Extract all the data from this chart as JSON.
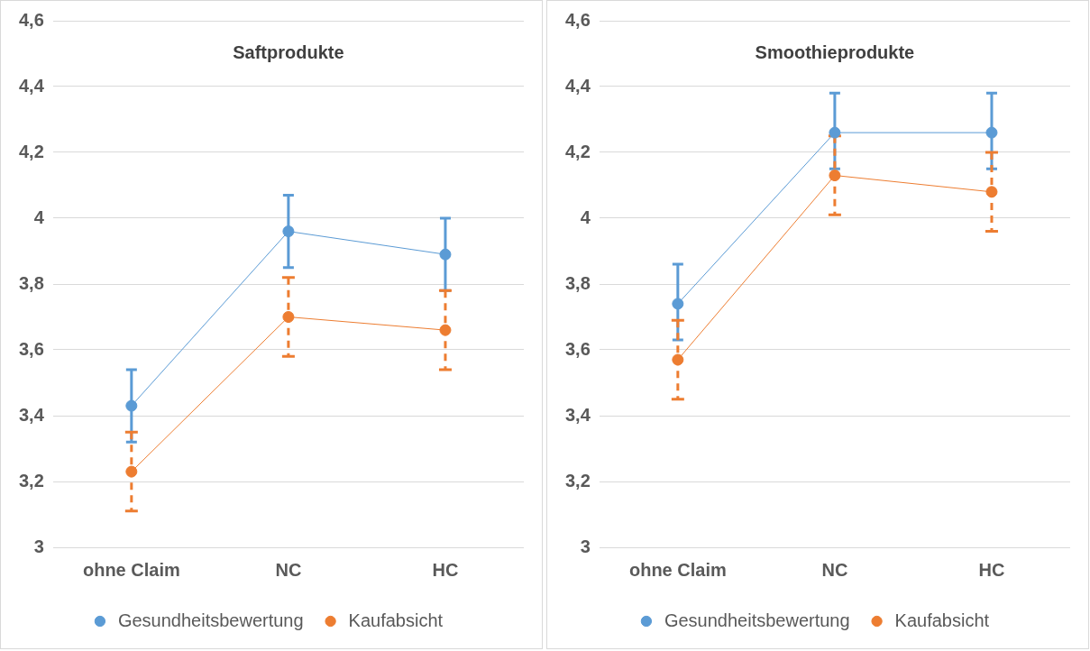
{
  "chart_data": [
    {
      "type": "line",
      "title": "Saftprodukte",
      "categories": [
        "ohne Claim",
        "NC",
        "HC"
      ],
      "ylim": [
        3,
        4.6
      ],
      "yticks": [
        {
          "value": 3,
          "label": "3"
        },
        {
          "value": 3.2,
          "label": "3,2"
        },
        {
          "value": 3.4,
          "label": "3,4"
        },
        {
          "value": 3.6,
          "label": "3,6"
        },
        {
          "value": 3.8,
          "label": "3,8"
        },
        {
          "value": 4,
          "label": "4"
        },
        {
          "value": 4.2,
          "label": "4,2"
        },
        {
          "value": 4.4,
          "label": "4,4"
        },
        {
          "value": 4.6,
          "label": "4,6"
        }
      ],
      "grid": "y",
      "legend": "bottom",
      "marker": "circle",
      "series": [
        {
          "name": "Gesundheitsbewertung",
          "color": "#5b9bd5",
          "values": [
            3.43,
            3.96,
            3.89
          ],
          "errors": [
            0.11,
            0.11,
            0.11
          ]
        },
        {
          "name": "Kaufabsicht",
          "color": "#ed7d31",
          "values": [
            3.23,
            3.7,
            3.66
          ],
          "errors": [
            0.12,
            0.12,
            0.12
          ]
        }
      ]
    },
    {
      "type": "line",
      "title": "Smoothieprodukte",
      "categories": [
        "ohne Claim",
        "NC",
        "HC"
      ],
      "ylim": [
        3,
        4.6
      ],
      "yticks": [
        {
          "value": 3,
          "label": "3"
        },
        {
          "value": 3.2,
          "label": "3,2"
        },
        {
          "value": 3.4,
          "label": "3,4"
        },
        {
          "value": 3.6,
          "label": "3,6"
        },
        {
          "value": 3.8,
          "label": "3,8"
        },
        {
          "value": 4,
          "label": "4"
        },
        {
          "value": 4.2,
          "label": "4,2"
        },
        {
          "value": 4.4,
          "label": "4,4"
        },
        {
          "value": 4.6,
          "label": "4,6"
        }
      ],
      "grid": "y",
      "legend": "bottom",
      "marker": "circle",
      "series": [
        {
          "name": "Gesundheitsbewertung",
          "color": "#5b9bd5",
          "values": [
            3.74,
            4.26,
            4.26
          ],
          "errors": [
            [
              3.63,
              3.86
            ],
            [
              4.15,
              4.38
            ],
            [
              4.15,
              4.38
            ]
          ]
        },
        {
          "name": "Kaufabsicht",
          "color": "#ed7d31",
          "values": [
            3.57,
            4.13,
            4.08
          ],
          "errors": [
            0.12,
            0.12,
            0.12
          ]
        }
      ]
    }
  ]
}
